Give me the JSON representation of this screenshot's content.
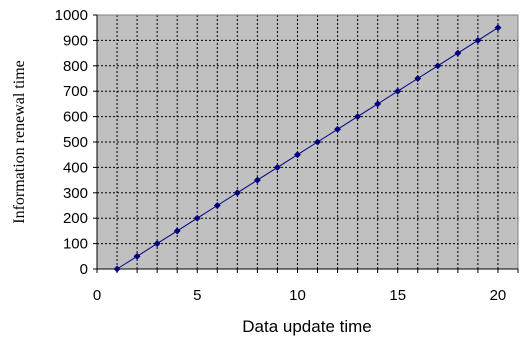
{
  "chart_data": {
    "type": "line",
    "title": "",
    "xlabel": "Data update time",
    "ylabel": "Information renewal time",
    "xlim": [
      0,
      21
    ],
    "ylim": [
      0,
      1000
    ],
    "x_ticks": [
      0,
      5,
      10,
      15,
      20
    ],
    "y_ticks": [
      0,
      100,
      200,
      300,
      400,
      500,
      600,
      700,
      800,
      900,
      1000
    ],
    "grid": true,
    "legend": "none",
    "colors": {
      "plot_background": "#c0c0c0",
      "grid": "#000000",
      "series": "#000080"
    },
    "series": [
      {
        "x": [
          1,
          2,
          3,
          4,
          5,
          6,
          7,
          8,
          9,
          10,
          11,
          12,
          13,
          14,
          15,
          16,
          17,
          18,
          19,
          20
        ],
        "values": [
          0,
          50,
          100,
          150,
          200,
          250,
          300,
          350,
          400,
          450,
          500,
          550,
          600,
          650,
          700,
          750,
          800,
          850,
          900,
          950
        ]
      }
    ]
  }
}
